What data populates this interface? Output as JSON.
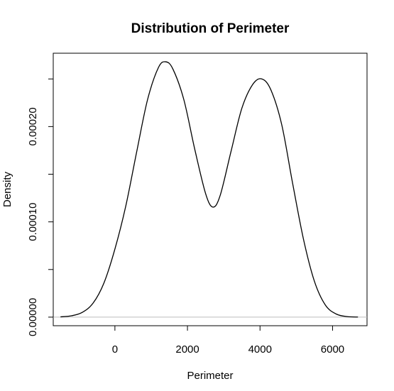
{
  "chart_data": {
    "type": "line",
    "title": "Distribution of Perimeter",
    "xlabel": "Perimeter",
    "ylabel": "Density",
    "xlim": [
      -1700,
      6950
    ],
    "ylim": [
      -9e-06,
      0.000277
    ],
    "grid": false,
    "legend": "none",
    "x_ticks": [
      {
        "value": 0,
        "label": "0"
      },
      {
        "value": 2000,
        "label": "2000"
      },
      {
        "value": 4000,
        "label": "4000"
      },
      {
        "value": 6000,
        "label": "6000"
      }
    ],
    "y_ticks": [
      {
        "value": 0,
        "label": "0.00000"
      },
      {
        "value": 5e-05,
        "label": ""
      },
      {
        "value": 0.0001,
        "label": "0.00010"
      },
      {
        "value": 0.00015,
        "label": ""
      },
      {
        "value": 0.0002,
        "label": "0.00020"
      },
      {
        "value": 0.00025,
        "label": ""
      }
    ],
    "baseline": {
      "y": 0,
      "color": "#bebebe"
    },
    "series": [
      {
        "color": "#000000",
        "x": [
          -1500,
          -1200,
          -900,
          -600,
          -300,
          0,
          300,
          600,
          900,
          1200,
          1400,
          1600,
          1900,
          2200,
          2500,
          2700,
          2900,
          3200,
          3500,
          3800,
          4050,
          4300,
          4600,
          4900,
          5200,
          5500,
          5800,
          6100,
          6400,
          6700
        ],
        "y": [
          3e-07,
          1.4e-06,
          5e-06,
          1.48e-05,
          3.61e-05,
          7.15e-05,
          0.0001167,
          0.0001735,
          0.0002283,
          0.000262,
          0.000268,
          0.0002603,
          0.0002283,
          0.0001764,
          0.0001297,
          0.0001155,
          0.0001275,
          0.0001738,
          0.0002193,
          0.0002443,
          0.00025,
          0.0002385,
          0.0002018,
          0.0001402,
          8.15e-05,
          3.76e-05,
          1.28e-05,
          3.3e-06,
          6e-07,
          1e-07
        ]
      }
    ]
  }
}
